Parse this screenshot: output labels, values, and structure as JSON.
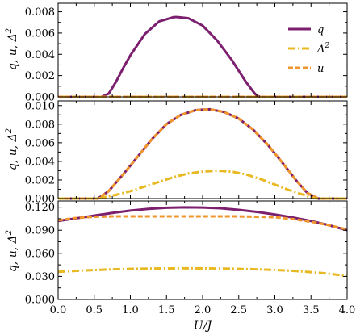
{
  "colors": {
    "q": "#7b1f6e",
    "delta2": "#e8b923",
    "u": "#f0962d"
  },
  "chart_data": [
    {
      "type": "line",
      "panel": "top",
      "xlim": [
        0,
        4
      ],
      "ylim": [
        0,
        0.0088
      ],
      "yticks": [
        "0.000",
        "0.002",
        "0.004",
        "0.006",
        "0.008"
      ],
      "ytick_values": [
        0,
        0.002,
        0.004,
        0.006,
        0.008
      ],
      "ylabel": "q, u, Δ²",
      "legend": {
        "placement": "top-right",
        "entries": [
          "q",
          "Δ2",
          "u"
        ]
      },
      "series": [
        {
          "name": "q",
          "color": "q",
          "dash": "solid",
          "x": [
            0,
            0.6,
            0.7,
            0.8,
            0.9,
            1.0,
            1.2,
            1.4,
            1.6,
            1.65,
            1.8,
            2.0,
            2.2,
            2.4,
            2.6,
            2.7,
            2.75,
            2.8,
            4.0
          ],
          "y": [
            0,
            0,
            0.0003,
            0.0014,
            0.0027,
            0.0039,
            0.0059,
            0.0071,
            0.0075,
            0.0075,
            0.0074,
            0.0067,
            0.0053,
            0.0035,
            0.0014,
            0.0005,
            0.0001,
            0,
            0
          ]
        },
        {
          "name": "Δ2",
          "color": "delta2",
          "dash": "dashdot",
          "x": [
            0,
            4
          ],
          "y": [
            0,
            0
          ]
        },
        {
          "name": "u",
          "color": "u",
          "dash": "dash",
          "x": [
            0,
            4
          ],
          "y": [
            0,
            0
          ]
        }
      ]
    },
    {
      "type": "line",
      "panel": "middle",
      "xlim": [
        0,
        4
      ],
      "ylim": [
        0,
        0.0105
      ],
      "yticks": [
        "0.000",
        "0.002",
        "0.004",
        "0.006",
        "0.008",
        "0.010"
      ],
      "ytick_values": [
        0,
        0.002,
        0.004,
        0.006,
        0.008,
        0.01
      ],
      "ylabel": "q, u, Δ²",
      "series": [
        {
          "name": "q",
          "color": "q",
          "dash": "solid",
          "x": [
            0,
            0.55,
            0.7,
            0.9,
            1.1,
            1.3,
            1.5,
            1.7,
            1.9,
            2.1,
            2.3,
            2.5,
            2.7,
            2.9,
            3.1,
            3.3,
            3.45,
            3.6,
            4.0
          ],
          "y": [
            0,
            0,
            0.0008,
            0.0026,
            0.0045,
            0.0064,
            0.008,
            0.009,
            0.0095,
            0.0096,
            0.0093,
            0.0086,
            0.0074,
            0.0058,
            0.0039,
            0.0019,
            0.0006,
            0,
            0
          ]
        },
        {
          "name": "u",
          "color": "u",
          "dash": "dash",
          "x": [
            0,
            0.55,
            0.7,
            0.9,
            1.1,
            1.3,
            1.5,
            1.7,
            1.9,
            2.1,
            2.3,
            2.5,
            2.7,
            2.9,
            3.1,
            3.3,
            3.45,
            3.6,
            4.0
          ],
          "y": [
            0,
            0,
            0.0008,
            0.0026,
            0.0045,
            0.0064,
            0.008,
            0.009,
            0.0095,
            0.0096,
            0.0093,
            0.0086,
            0.0074,
            0.0058,
            0.0039,
            0.0019,
            0.0006,
            0,
            0
          ]
        },
        {
          "name": "Δ2",
          "color": "delta2",
          "dash": "dashdot",
          "x": [
            0,
            0.55,
            0.8,
            1.0,
            1.2,
            1.4,
            1.6,
            1.8,
            2.0,
            2.2,
            2.4,
            2.6,
            2.8,
            3.0,
            3.2,
            3.4,
            3.5,
            3.6,
            4.0
          ],
          "y": [
            0,
            0,
            0.0004,
            0.0008,
            0.0013,
            0.0018,
            0.0023,
            0.0027,
            0.0029,
            0.003,
            0.0029,
            0.0026,
            0.0021,
            0.0015,
            0.0009,
            0.0004,
            0.0001,
            0,
            0
          ]
        }
      ]
    },
    {
      "type": "line",
      "panel": "bottom",
      "xlim": [
        0,
        4
      ],
      "ylim": [
        0,
        0.128
      ],
      "yticks": [
        "0.000",
        "0.030",
        "0.060",
        "0.090",
        "0.120"
      ],
      "ytick_values": [
        0,
        0.03,
        0.06,
        0.09,
        0.12
      ],
      "xticks": [
        "0.0",
        "0.5",
        "1.0",
        "1.5",
        "2.0",
        "2.5",
        "3.0",
        "3.5",
        "4.0"
      ],
      "xtick_values": [
        0,
        0.5,
        1.0,
        1.5,
        2.0,
        2.5,
        3.0,
        3.5,
        4.0
      ],
      "xlabel": "U/J",
      "ylabel": "q, u, Δ²",
      "series": [
        {
          "name": "q",
          "color": "q",
          "dash": "solid",
          "x": [
            0,
            0.25,
            0.5,
            0.75,
            1.0,
            1.25,
            1.5,
            1.75,
            2.0,
            2.25,
            2.5,
            2.75,
            3.0,
            3.25,
            3.5,
            3.75,
            4.0
          ],
          "y": [
            0.102,
            0.1055,
            0.109,
            0.1125,
            0.1155,
            0.1178,
            0.1192,
            0.1198,
            0.1195,
            0.1185,
            0.1165,
            0.1138,
            0.1105,
            0.1065,
            0.102,
            0.0965,
            0.09
          ]
        },
        {
          "name": "u",
          "color": "u",
          "dash": "dash",
          "x": [
            0,
            0.25,
            0.5,
            0.75,
            1.0,
            1.5,
            2.0,
            2.5,
            3.0,
            3.25,
            3.5,
            3.75,
            4.0
          ],
          "y": [
            0.103,
            0.106,
            0.1075,
            0.108,
            0.108,
            0.108,
            0.108,
            0.108,
            0.107,
            0.1045,
            0.101,
            0.0965,
            0.091
          ]
        },
        {
          "name": "Δ2",
          "color": "delta2",
          "dash": "dashdot",
          "x": [
            0,
            0.25,
            0.5,
            0.75,
            1.0,
            1.25,
            1.5,
            1.75,
            2.0,
            2.25,
            2.5,
            2.75,
            3.0,
            3.25,
            3.5,
            3.75,
            4.0
          ],
          "y": [
            0.036,
            0.0372,
            0.0383,
            0.0392,
            0.0398,
            0.0402,
            0.0404,
            0.0405,
            0.0404,
            0.0402,
            0.0398,
            0.0392,
            0.0384,
            0.0372,
            0.0356,
            0.0335,
            0.0305
          ]
        }
      ]
    }
  ],
  "labels": {
    "ylabel_text": "q, u, Δ",
    "ylabel_sup": "2",
    "xlabel": "U/J",
    "legend_q": "q",
    "legend_delta": "Δ",
    "legend_delta_sup": "2",
    "legend_u": "u"
  }
}
